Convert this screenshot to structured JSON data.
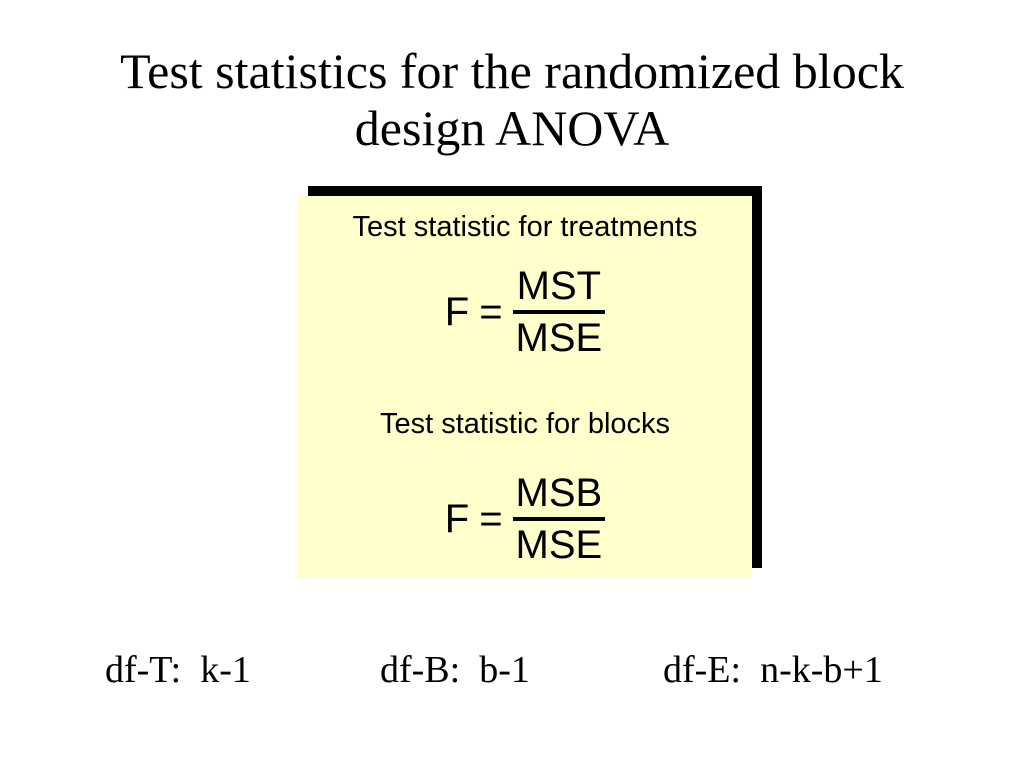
{
  "title": {
    "line1": "Test statistics for the randomized block",
    "line2": "design ANOVA"
  },
  "box": {
    "background_color": "#FFFFCC",
    "frame_color": "#000000",
    "treatments_label": "Test statistic for treatments",
    "treatments_formula": {
      "lhs": "F",
      "equals": "=",
      "numerator": "MST",
      "denominator": "MSE"
    },
    "blocks_label": "Test statistic for blocks",
    "blocks_formula": {
      "lhs": "F",
      "equals": "=",
      "numerator": "MSB",
      "denominator": "MSE"
    }
  },
  "df_row": [
    {
      "label": "df-T:",
      "value": "k-1"
    },
    {
      "label": "df-B:",
      "value": "b-1"
    },
    {
      "label": "df-E:",
      "value": "n-k-b+1"
    }
  ],
  "text_color": "#000000",
  "page_background": "#FFFFFF"
}
